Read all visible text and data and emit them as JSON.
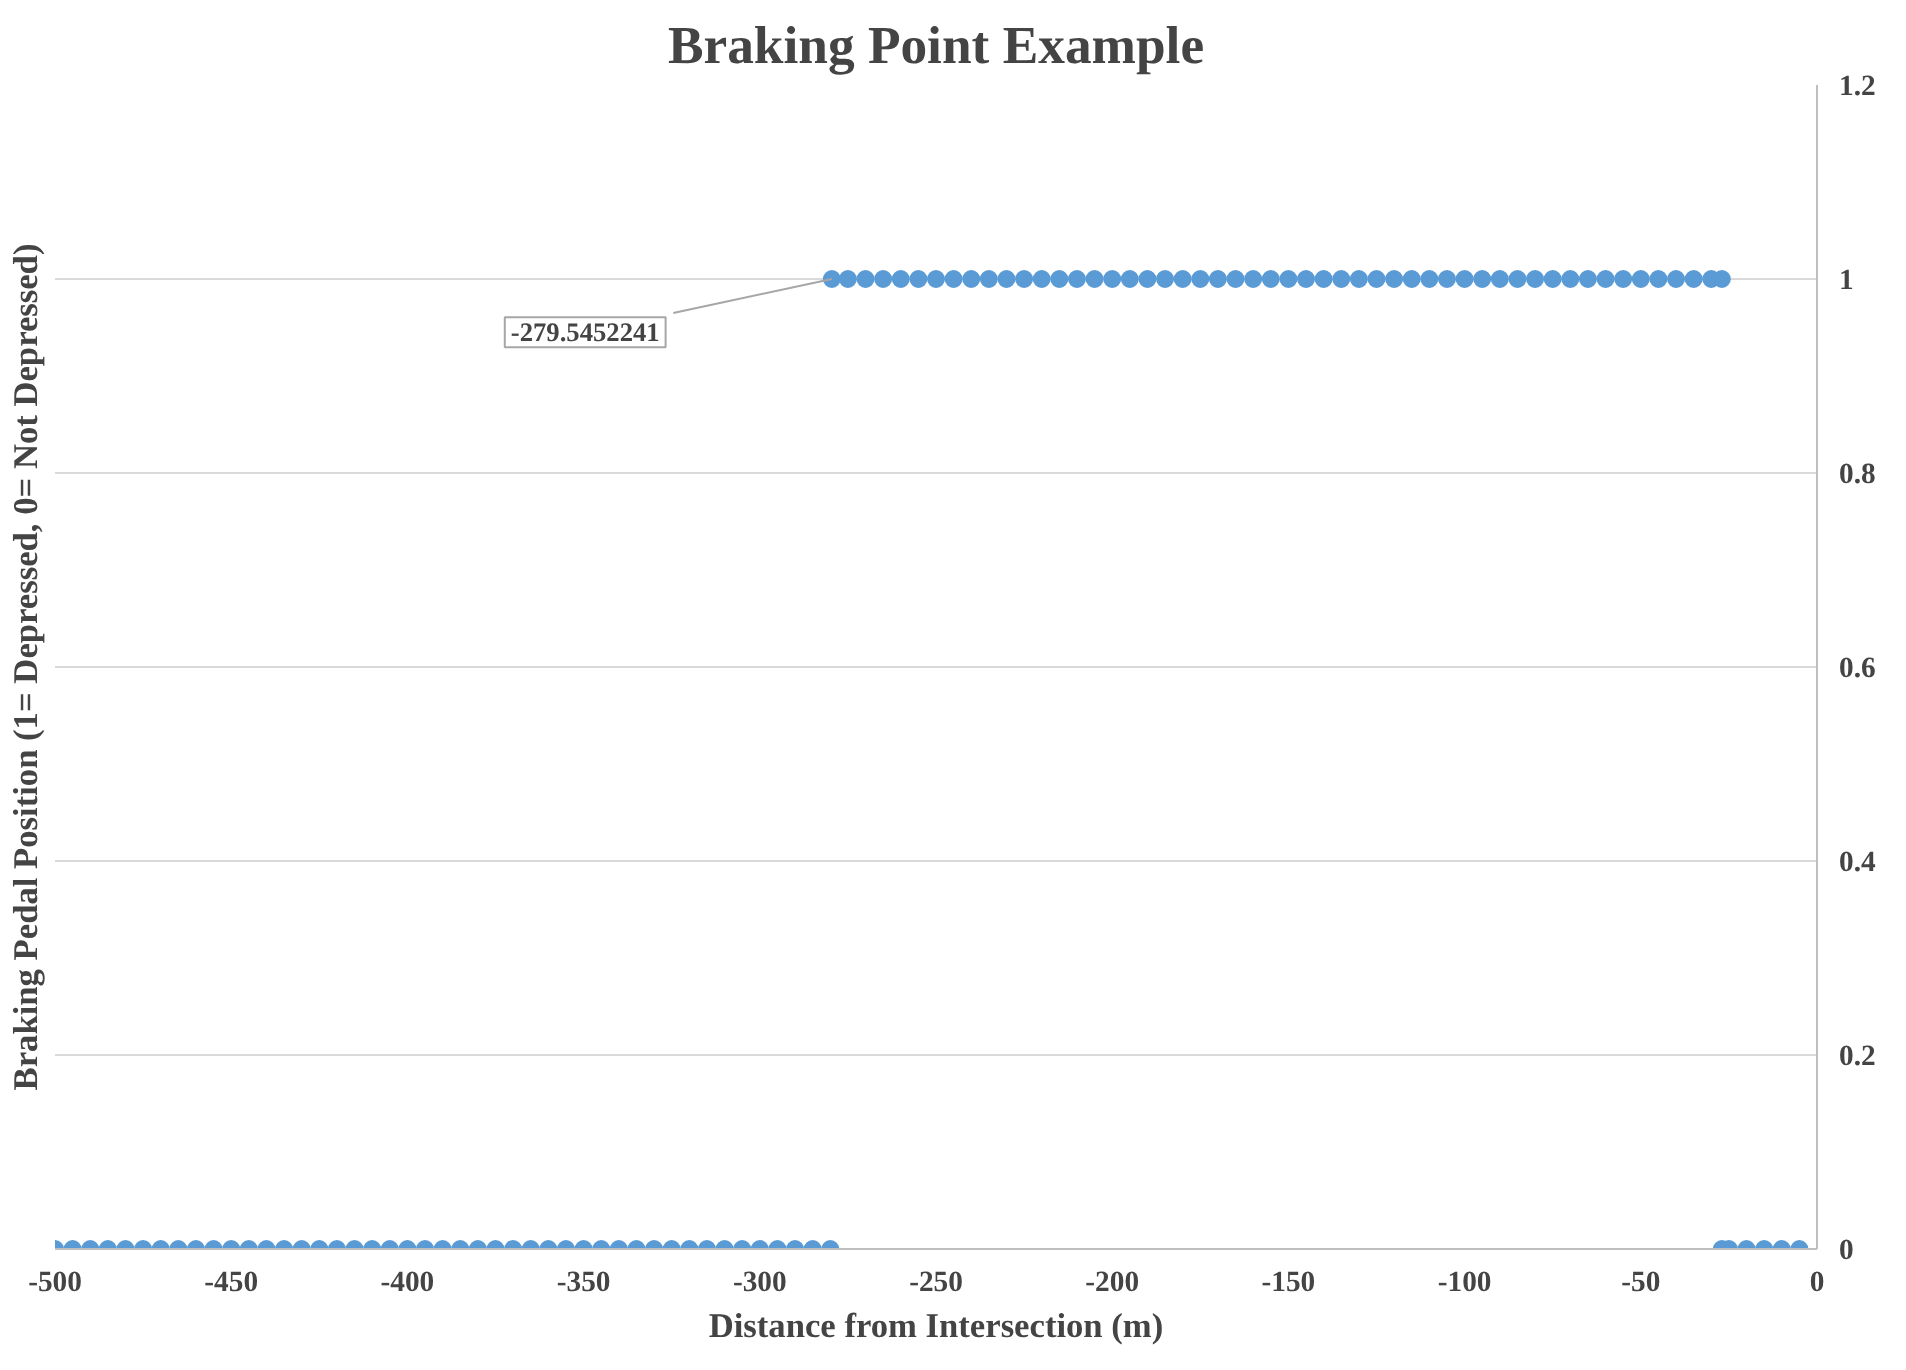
{
  "chart_data": {
    "type": "scatter",
    "title": "Braking Point Example",
    "xlabel": "Distance from Intersection (m)",
    "ylabel": "Braking Pedal Position (1= Depressed, 0= Not Depressed)",
    "xlim": [
      -500,
      0
    ],
    "xticks": [
      -500,
      -450,
      -400,
      -350,
      -300,
      -250,
      -200,
      -150,
      -100,
      -50,
      0
    ],
    "ylim": [
      0,
      1.2
    ],
    "yticks": [
      0,
      0.2,
      0.4,
      0.6,
      0.8,
      1,
      1.2
    ],
    "grid": "y",
    "marker": "circle",
    "series": [
      {
        "color": "#5b9bd5",
        "x": [
          -500,
          -495,
          -490,
          -485,
          -480,
          -475,
          -470,
          -465,
          -460,
          -455,
          -450,
          -445,
          -440,
          -435,
          -430,
          -425,
          -420,
          -415,
          -410,
          -405,
          -400,
          -395,
          -390,
          -385,
          -380,
          -375,
          -370,
          -365,
          -360,
          -355,
          -350,
          -345,
          -340,
          -335,
          -330,
          -325,
          -320,
          -315,
          -310,
          -305,
          -300,
          -295,
          -290,
          -285,
          -280
        ],
        "values": [
          0,
          0,
          0,
          0,
          0,
          0,
          0,
          0,
          0,
          0,
          0,
          0,
          0,
          0,
          0,
          0,
          0,
          0,
          0,
          0,
          0,
          0,
          0,
          0,
          0,
          0,
          0,
          0,
          0,
          0,
          0,
          0,
          0,
          0,
          0,
          0,
          0,
          0,
          0,
          0,
          0,
          0,
          0,
          0,
          0
        ]
      },
      {
        "color": "#5b9bd5",
        "x": [
          -279.5452241,
          -275,
          -270,
          -265,
          -260,
          -255,
          -250,
          -245,
          -240,
          -235,
          -230,
          -225,
          -220,
          -215,
          -210,
          -205,
          -200,
          -195,
          -190,
          -185,
          -180,
          -175,
          -170,
          -165,
          -160,
          -155,
          -150,
          -145,
          -140,
          -135,
          -130,
          -125,
          -120,
          -115,
          -110,
          -105,
          -100,
          -95,
          -90,
          -85,
          -80,
          -75,
          -70,
          -65,
          -60,
          -55,
          -50,
          -45,
          -40,
          -35,
          -30,
          -27
        ],
        "values": [
          1,
          1,
          1,
          1,
          1,
          1,
          1,
          1,
          1,
          1,
          1,
          1,
          1,
          1,
          1,
          1,
          1,
          1,
          1,
          1,
          1,
          1,
          1,
          1,
          1,
          1,
          1,
          1,
          1,
          1,
          1,
          1,
          1,
          1,
          1,
          1,
          1,
          1,
          1,
          1,
          1,
          1,
          1,
          1,
          1,
          1,
          1,
          1,
          1,
          1,
          1,
          1
        ]
      },
      {
        "color": "#5b9bd5",
        "x": [
          -27,
          -25,
          -20,
          -15,
          -10,
          -5
        ],
        "values": [
          0,
          0,
          0,
          0,
          0,
          0
        ]
      }
    ],
    "annotations": [
      {
        "text": "-279.5452241",
        "x": -279.5452241,
        "y": 1
      }
    ]
  }
}
